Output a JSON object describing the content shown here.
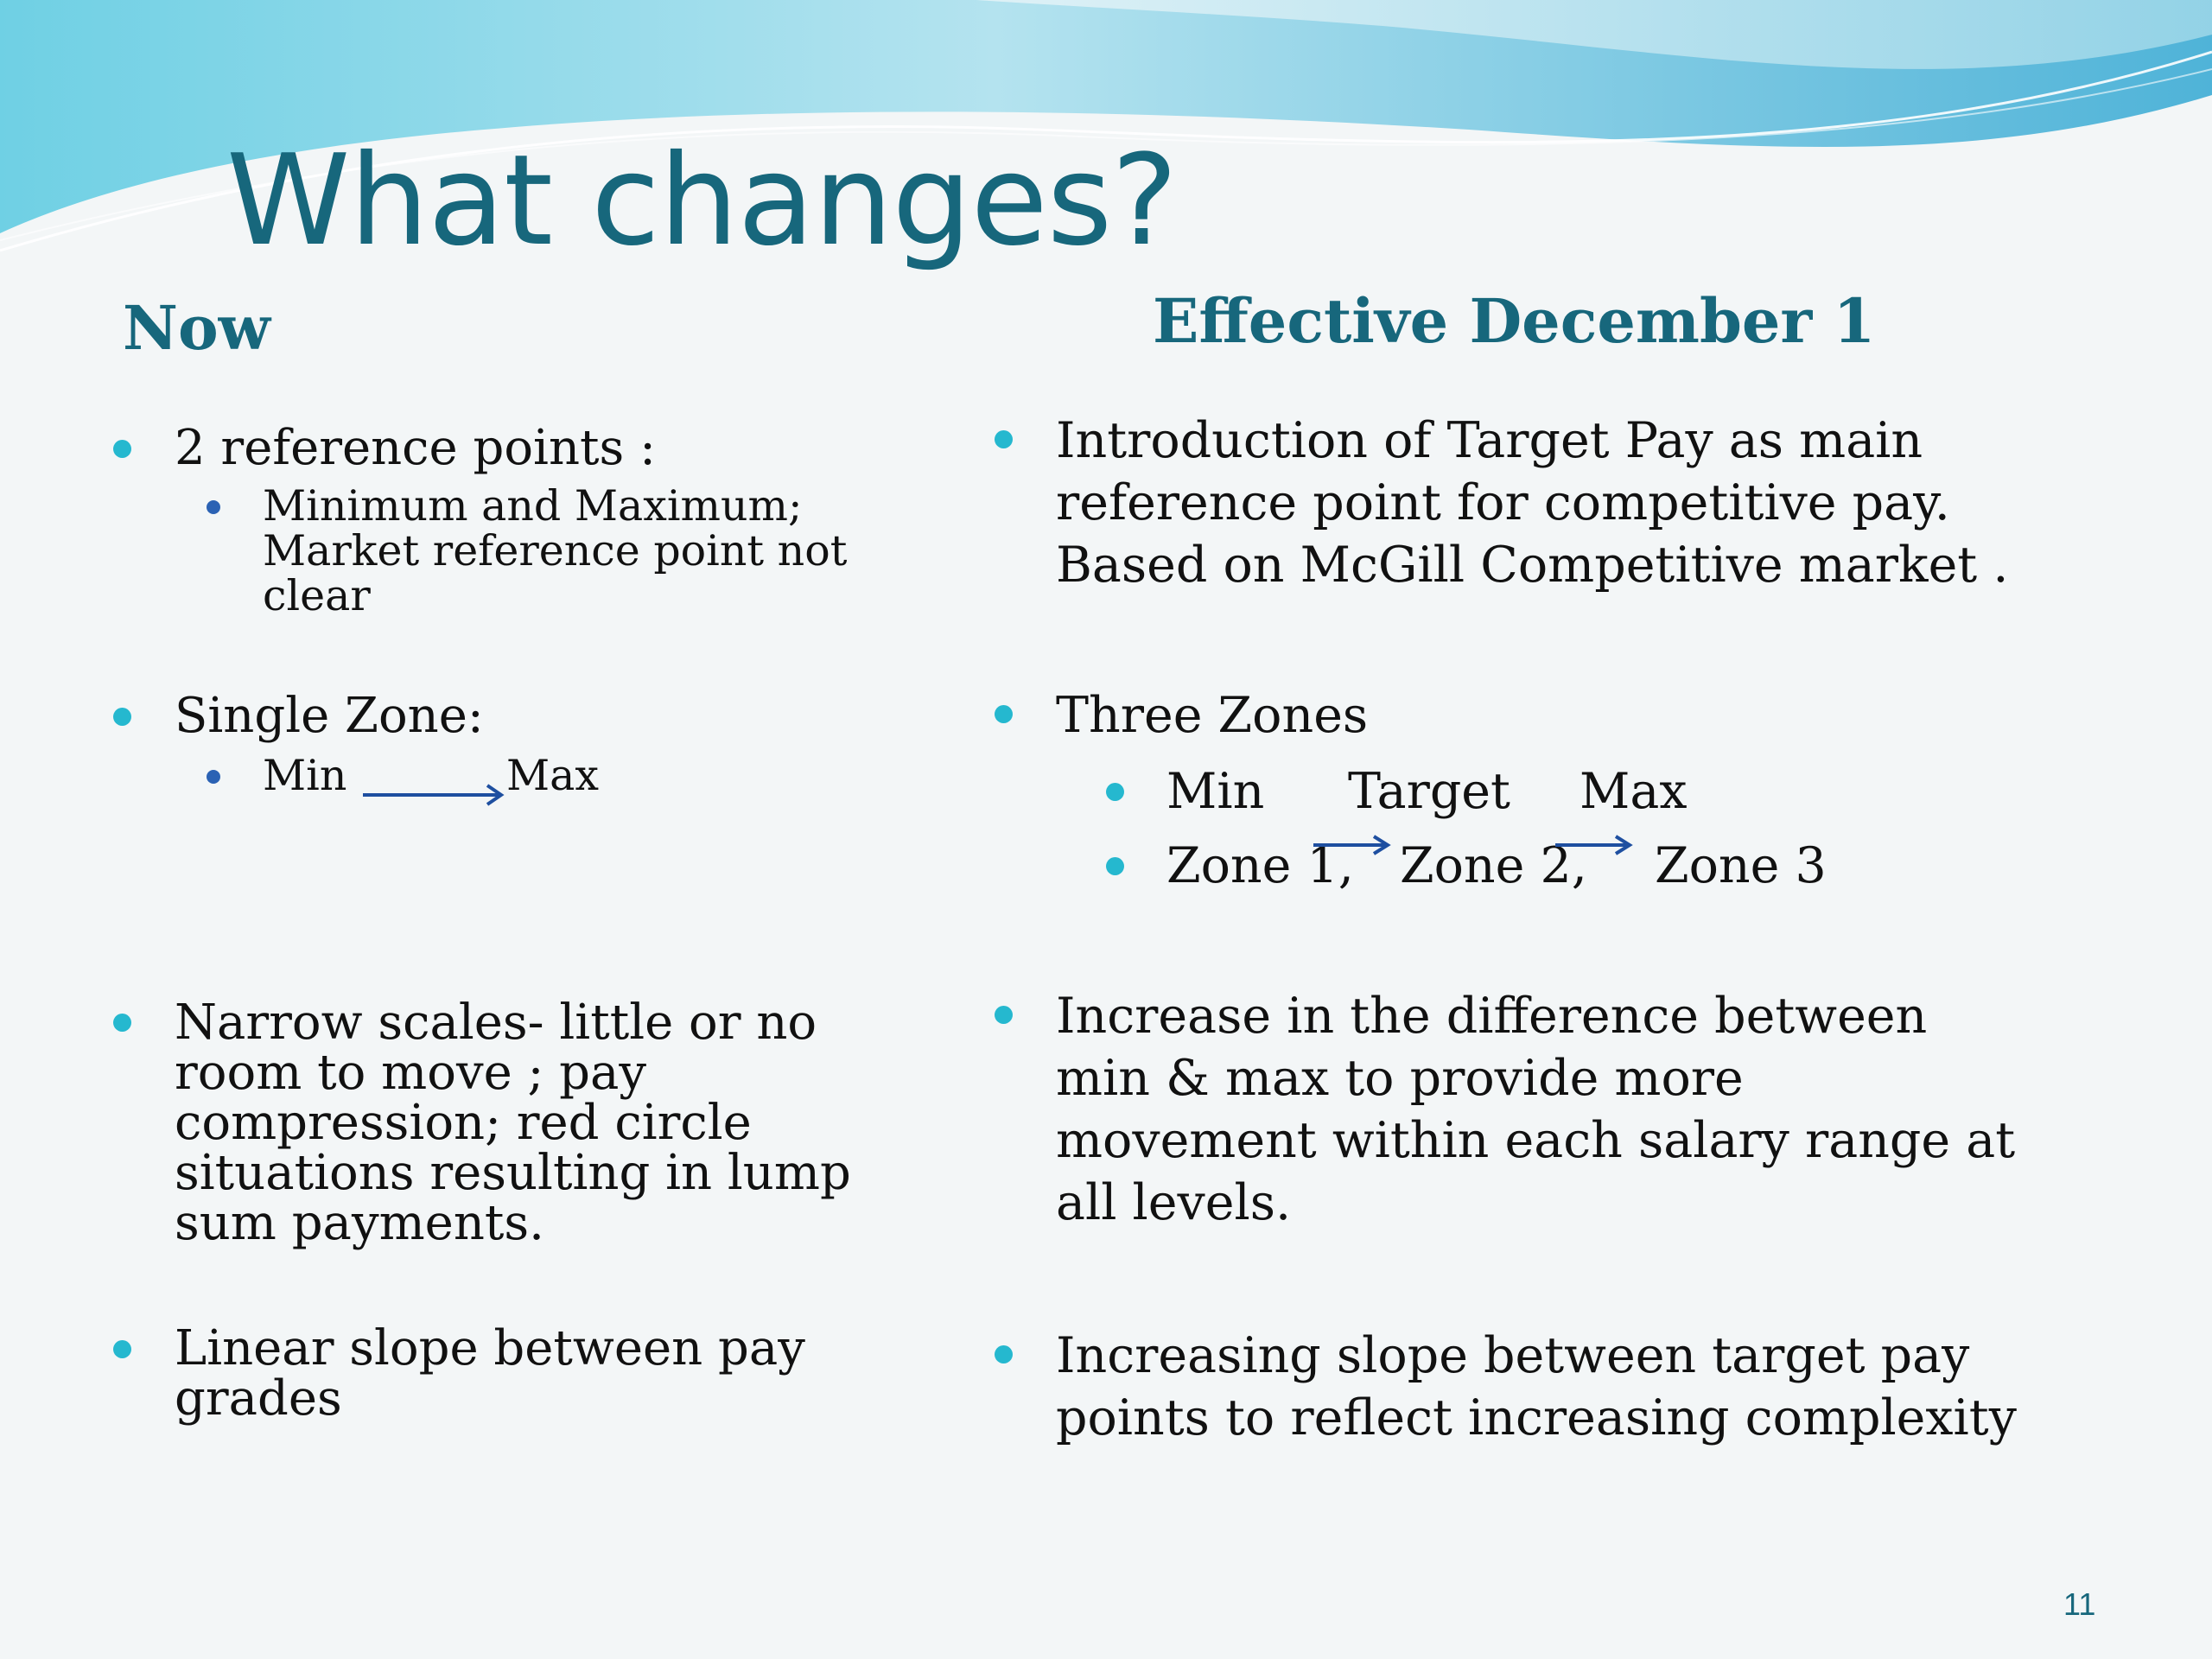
{
  "slide": {
    "title": "What changes?",
    "page_number": "11",
    "colors": {
      "accent": "#17677c",
      "bullet": "#25b8cf",
      "sub_bullet": "#2b62b4",
      "arrow": "#1e4fa0"
    }
  },
  "now": {
    "heading": "Now",
    "item1": {
      "text": "2 reference points :",
      "sub": [
        "Minimum  and  Maximum;",
        "Market reference point not",
        "clear"
      ]
    },
    "item2": {
      "text": "Single Zone:",
      "sub_min": "Min",
      "sub_max": "Max"
    },
    "item3": {
      "lines": [
        "Narrow scales- little or no",
        "room to move ; pay",
        "compression; red circle",
        "situations resulting in lump",
        "sum payments."
      ]
    },
    "item4": {
      "lines": [
        "Linear slope between pay",
        "grades"
      ]
    }
  },
  "effective": {
    "heading": "Effective December 1",
    "item1": {
      "lines": [
        "Introduction of Target Pay as main",
        "reference point for competitive pay.",
        "Based on McGill Competitive market ."
      ]
    },
    "item2": {
      "text": "Three Zones",
      "row1": [
        "Min",
        "Target",
        "Max"
      ],
      "row2": [
        "Zone 1,",
        "Zone 2,",
        "Zone 3"
      ]
    },
    "item3": {
      "lines": [
        "Increase  in the difference between",
        "min & max  to provide more",
        "movement within each salary range at",
        "all levels."
      ]
    },
    "item4": {
      "lines": [
        "Increasing slope between target pay",
        "points to reflect increasing complexity"
      ]
    }
  }
}
